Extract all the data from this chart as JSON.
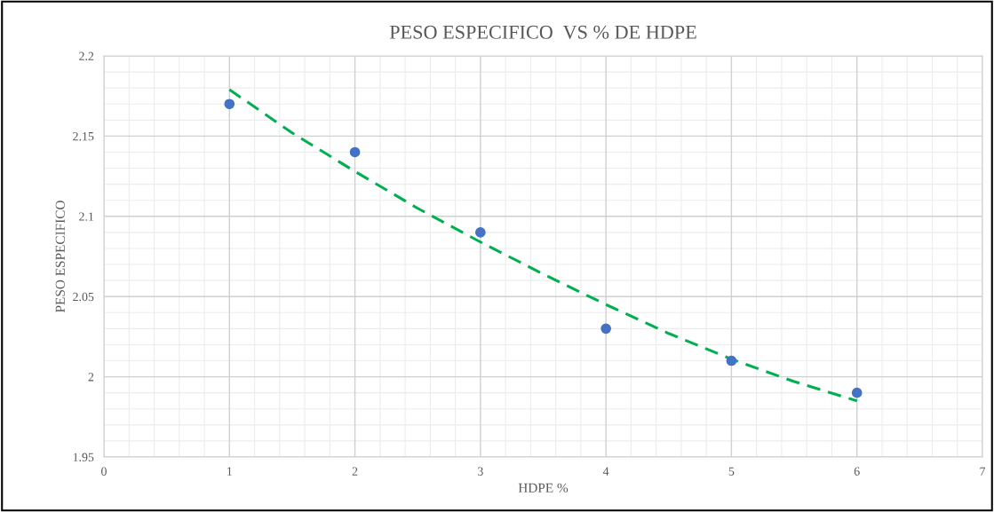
{
  "chart_data": {
    "type": "scatter",
    "title": "PESO ESPECIFICO  VS % DE HDPE",
    "xlabel": "HDPE %",
    "ylabel": "PESO ESPECIFICO",
    "series": [
      {
        "color": "#4472c4",
        "x": [
          1,
          2,
          3,
          4,
          5,
          6
        ],
        "values": [
          2.17,
          2.14,
          2.09,
          2.03,
          2.01,
          1.99
        ],
        "marker": "circle"
      },
      {
        "type": "line",
        "color": "#00b050",
        "line_style": "dashed",
        "x": [
          1,
          1.5,
          2,
          2.5,
          3,
          3.5,
          4,
          4.5,
          5,
          5.5,
          6
        ],
        "values": [
          2.179,
          2.152,
          2.128,
          2.105,
          2.084,
          2.064,
          2.045,
          2.027,
          2.011,
          1.997,
          1.985
        ]
      }
    ],
    "xlim": [
      0,
      7
    ],
    "xticks": [
      0,
      1,
      2,
      3,
      4,
      5,
      6,
      7
    ],
    "ylim": [
      1.95,
      2.2
    ],
    "yticks": [
      1.95,
      2,
      2.05,
      2.1,
      2.15,
      2.2
    ],
    "grid": true,
    "legend": false
  }
}
